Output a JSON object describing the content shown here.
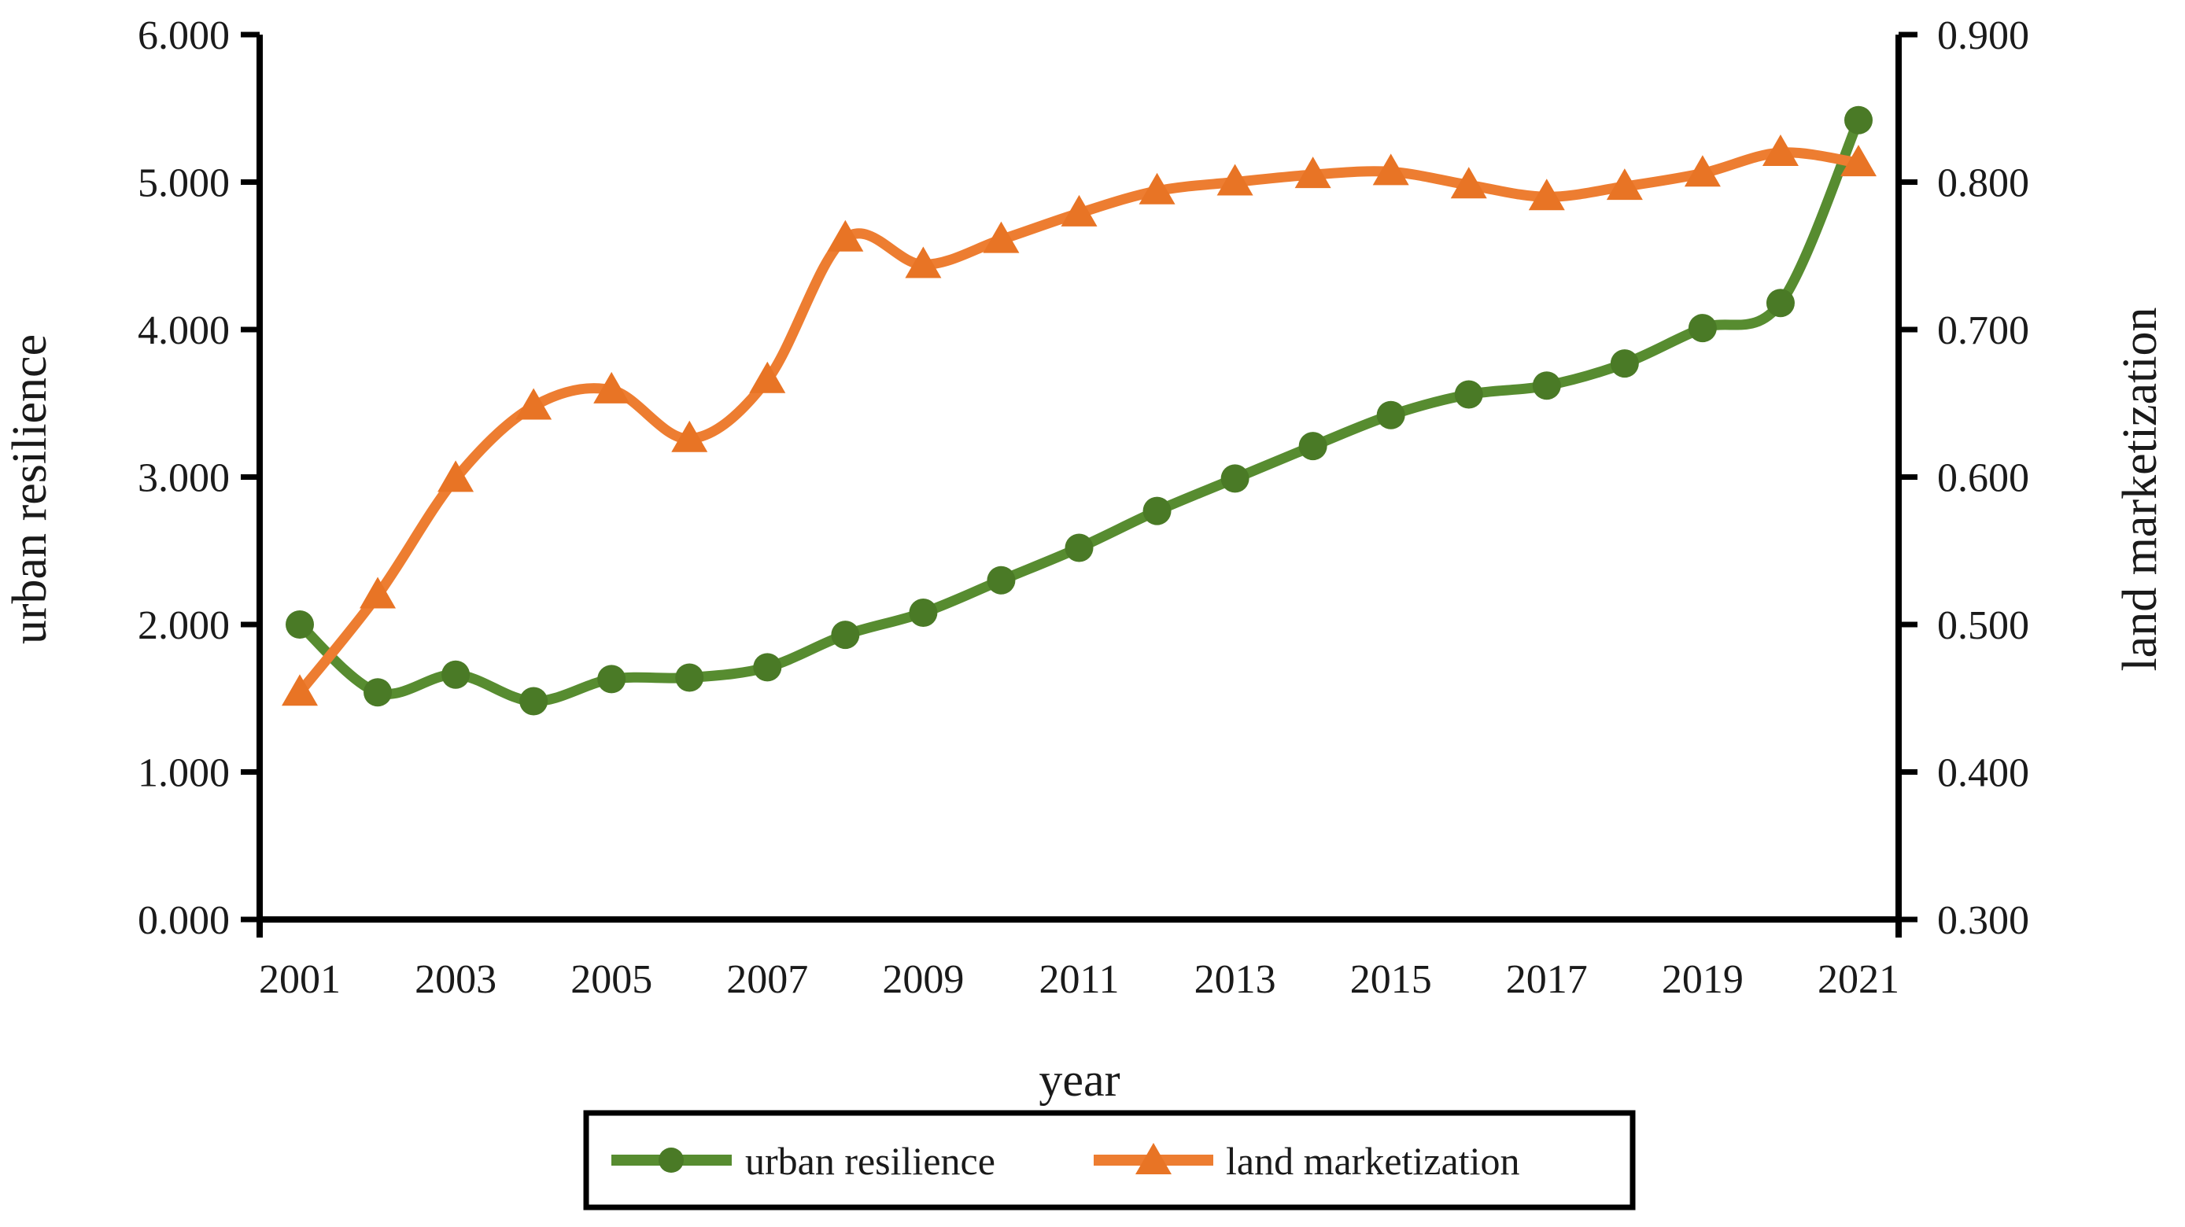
{
  "figure": {
    "background_color": "#ffffff",
    "axis_line_color": "#000000",
    "text_color": "#1a1a1a"
  },
  "chart_data": {
    "type": "line",
    "title": "",
    "xlabel": "year",
    "ylabel_left": "urban resilience",
    "ylabel_right": "land marketization",
    "x": [
      2001,
      2002,
      2003,
      2004,
      2005,
      2006,
      2007,
      2008,
      2009,
      2010,
      2011,
      2012,
      2013,
      2014,
      2015,
      2016,
      2017,
      2018,
      2019,
      2020,
      2021
    ],
    "x_tick_labels": [
      "2001",
      "2003",
      "2005",
      "2007",
      "2009",
      "2011",
      "2013",
      "2015",
      "2017",
      "2019",
      "2021"
    ],
    "y_left_axis": {
      "min": 0.0,
      "max": 6.0,
      "tick_step": 1.0,
      "tick_labels": [
        "0.000",
        "1.000",
        "2.000",
        "3.000",
        "4.000",
        "5.000",
        "6.000"
      ]
    },
    "y_right_axis": {
      "min": 0.3,
      "max": 0.9,
      "tick_step": 0.1,
      "tick_labels": [
        "0.300",
        "0.400",
        "0.500",
        "0.600",
        "0.700",
        "0.800",
        "0.900"
      ]
    },
    "grid": false,
    "legend_position": "bottom",
    "series": [
      {
        "name": "urban resilience",
        "axis": "left",
        "marker": "circle",
        "line_color": "#578c30",
        "marker_color": "#4a7a26",
        "values": [
          2.0,
          1.54,
          1.66,
          1.48,
          1.63,
          1.64,
          1.71,
          1.93,
          2.08,
          2.3,
          2.52,
          2.77,
          2.99,
          3.21,
          3.42,
          3.56,
          3.62,
          3.77,
          4.01,
          4.18,
          5.42
        ]
      },
      {
        "name": "land marketization",
        "axis": "right",
        "marker": "triangle",
        "line_color": "#ED7D31",
        "marker_color": "#e87425",
        "values": [
          0.454,
          0.52,
          0.599,
          0.648,
          0.659,
          0.626,
          0.666,
          0.762,
          0.744,
          0.761,
          0.779,
          0.794,
          0.8,
          0.805,
          0.807,
          0.798,
          0.79,
          0.797,
          0.806,
          0.82,
          0.813
        ]
      }
    ]
  }
}
